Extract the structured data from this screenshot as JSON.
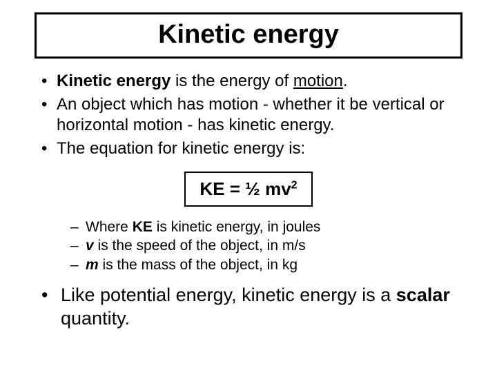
{
  "colors": {
    "background": "#ffffff",
    "text": "#000000",
    "border": "#000000"
  },
  "typography": {
    "family": "Arial",
    "title_size_pt": 38,
    "bullet_size_pt": 24,
    "equation_size_pt": 26,
    "sub_size_pt": 21,
    "final_size_pt": 27
  },
  "title": "Kinetic energy",
  "bullets": {
    "b1_bold": "Kinetic energy",
    "b1_mid": " is the energy of ",
    "b1_under": "motion",
    "b1_end": ".",
    "b2": "An object which has motion - whether it be vertical or horizontal motion - has kinetic energy.",
    "b3": "The equation for kinetic energy is:"
  },
  "equation": {
    "lhs": "KE = ½ mv",
    "sup": "2"
  },
  "subs": {
    "s1_pre": "Where ",
    "s1_bold": "KE",
    "s1_post": " is kinetic energy, in joules",
    "s2_bold": "v",
    "s2_post": " is the speed of the object, in m/s",
    "s3_bold": "m",
    "s3_post": " is the mass of the object, in kg"
  },
  "final": {
    "pre": "Like potential energy, kinetic energy is a ",
    "bold": "scalar",
    "post": " quantity."
  }
}
